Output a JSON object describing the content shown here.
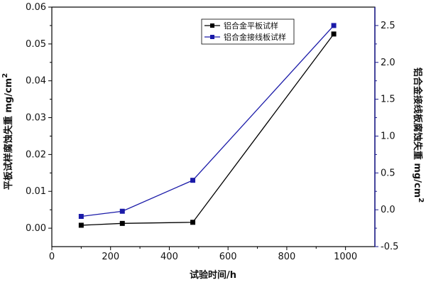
{
  "chart_data": {
    "type": "line",
    "x": [
      100,
      240,
      480,
      960
    ],
    "xlim": [
      0,
      1100
    ],
    "x_ticks": [
      0,
      200,
      400,
      600,
      800,
      1000
    ],
    "xlabel": "试验时间/h",
    "left_axis": {
      "label": "平板试样腐蚀失重 mg/cm",
      "label_superscript": "2",
      "ylim": [
        -0.005,
        0.06
      ],
      "ticks": [
        "0.00",
        "0.01",
        "0.02",
        "0.03",
        "0.04",
        "0.05",
        "0.06"
      ],
      "color": "#000000"
    },
    "right_axis": {
      "label": "铝合金接线板腐蚀失重 mg/cm",
      "label_superscript": "2",
      "ylim": [
        -0.5,
        2.75
      ],
      "ticks": [
        "-0.5",
        "0.0",
        "0.5",
        "1.0",
        "1.5",
        "2.0",
        "2.5"
      ],
      "color": "#1a1a8c"
    },
    "series": [
      {
        "name": "铝合金平板试样",
        "axis": "left",
        "color": "#000000",
        "marker": "square",
        "values": [
          0.0008,
          0.0013,
          0.0016,
          0.0527
        ]
      },
      {
        "name": "铝合金接线板试样",
        "axis": "right",
        "color": "#1a1aa8",
        "marker": "square",
        "values": [
          -0.09,
          -0.02,
          0.4,
          2.5
        ]
      }
    ],
    "legend_position": "top-center"
  }
}
